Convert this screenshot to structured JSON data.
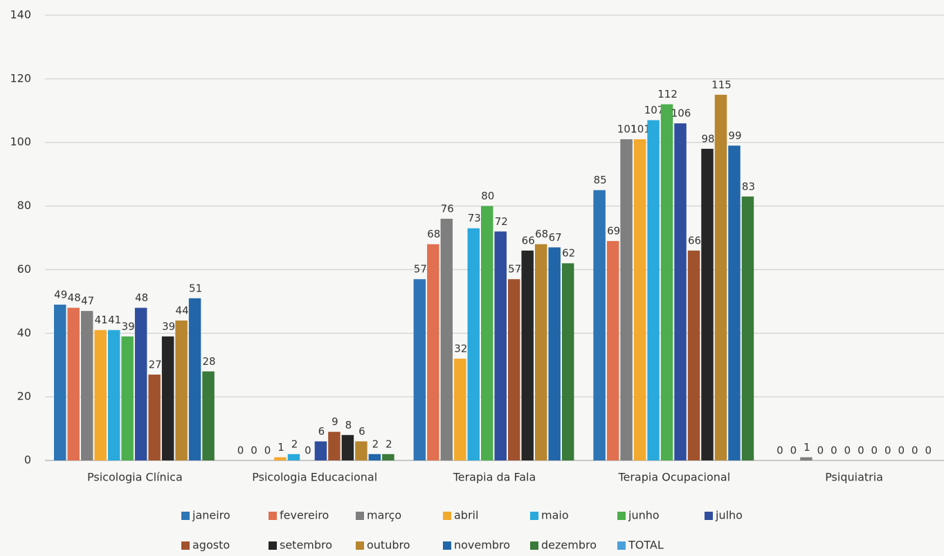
{
  "chart_data": {
    "type": "bar",
    "categories": [
      "Psicologia Clínica",
      "Psicologia Educacional",
      "Terapia da Fala",
      "Terapia Ocupacional",
      "Psiquiatria"
    ],
    "series": [
      {
        "name": "janeiro",
        "color": "#2e75b6",
        "values": [
          49,
          0,
          57,
          85,
          0
        ]
      },
      {
        "name": "fevereiro",
        "color": "#e0704f",
        "values": [
          48,
          0,
          68,
          69,
          0
        ]
      },
      {
        "name": "março",
        "color": "#7f7f7f",
        "values": [
          47,
          0,
          76,
          101,
          1
        ]
      },
      {
        "name": "abril",
        "color": "#f2a92e",
        "values": [
          41,
          1,
          32,
          101,
          0
        ]
      },
      {
        "name": "maio",
        "color": "#2aa9dc",
        "values": [
          41,
          2,
          73,
          107,
          0
        ]
      },
      {
        "name": "junho",
        "color": "#4cae4c",
        "values": [
          39,
          0,
          80,
          112,
          0
        ]
      },
      {
        "name": "julho",
        "color": "#2f4e9e",
        "values": [
          48,
          6,
          72,
          106,
          0
        ]
      },
      {
        "name": "agosto",
        "color": "#a0522d",
        "values": [
          27,
          9,
          57,
          66,
          0
        ]
      },
      {
        "name": "setembro",
        "color": "#262626",
        "values": [
          39,
          8,
          66,
          98,
          0
        ]
      },
      {
        "name": "outubro",
        "color": "#b8862e",
        "values": [
          44,
          6,
          68,
          115,
          0
        ]
      },
      {
        "name": "novembro",
        "color": "#2266aa",
        "values": [
          51,
          2,
          67,
          99,
          0
        ]
      },
      {
        "name": "dezembro",
        "color": "#3a7a3a",
        "values": [
          28,
          2,
          62,
          83,
          0
        ]
      },
      {
        "name": "TOTAL",
        "color": "#4aa0d8",
        "values": [
          null,
          null,
          null,
          null,
          null
        ]
      }
    ],
    "ylim": [
      0,
      140
    ],
    "yticks": [
      0,
      20,
      40,
      60,
      80,
      100,
      120,
      140
    ],
    "grid": true,
    "legend": "bottom"
  }
}
